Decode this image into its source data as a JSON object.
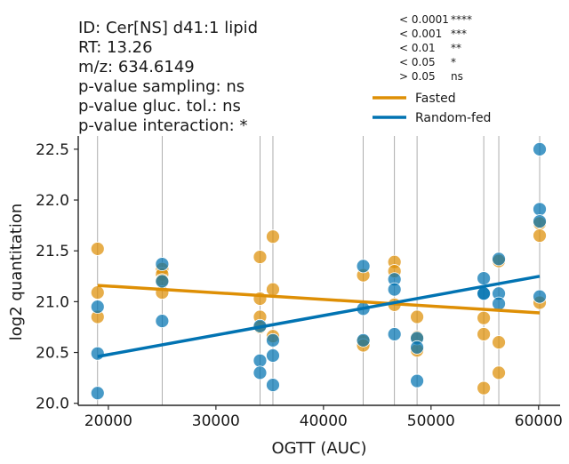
{
  "info": {
    "id": "ID: Cer[NS] d41:1 lipid",
    "rt": "RT: 13.26",
    "mz": "m/z: 634.6149",
    "p_sampling": "p-value sampling:   ns",
    "p_gluc": "p-value gluc. tol.:    ns",
    "p_interaction": "p-value interaction: *"
  },
  "pvalue_key": [
    {
      "threshold": "< 0.0001",
      "mark": "****"
    },
    {
      "threshold": "< 0.001",
      "mark": "***"
    },
    {
      "threshold": "< 0.01",
      "mark": "**"
    },
    {
      "threshold": "< 0.05",
      "mark": "*"
    },
    {
      "threshold": "> 0.05",
      "mark": "ns"
    }
  ],
  "colors": {
    "fasted": "#de8f05",
    "random_fed": "#0173b2",
    "vline": "#999999"
  },
  "chart_data": {
    "type": "scatter",
    "xlabel": "OGTT (AUC)",
    "ylabel": "log2 quantitation",
    "xlim": [
      17200,
      62000
    ],
    "ylim": [
      19.98,
      22.63
    ],
    "xticks": [
      20000,
      30000,
      40000,
      50000,
      60000
    ],
    "xtick_labels": [
      "20000",
      "30000",
      "40000",
      "50000",
      "60000"
    ],
    "yticks": [
      20.0,
      20.5,
      21.0,
      21.5,
      22.0,
      22.5
    ],
    "ytick_labels": [
      "20.0",
      "20.5",
      "21.0",
      "21.5",
      "22.0",
      "22.5"
    ],
    "vertical_lines": [
      19000,
      25000,
      34100,
      35300,
      43700,
      46600,
      48700,
      54900,
      56300,
      60100
    ],
    "legend": {
      "position": "top-right",
      "entries": [
        "Fasted",
        "Random-fed"
      ]
    },
    "series": [
      {
        "name": "Fasted",
        "points": [
          [
            19000,
            21.52
          ],
          [
            19000,
            21.09
          ],
          [
            19000,
            20.85
          ],
          [
            25000,
            21.32
          ],
          [
            25000,
            21.27
          ],
          [
            25000,
            21.21
          ],
          [
            25000,
            21.09
          ],
          [
            34100,
            21.44
          ],
          [
            34100,
            21.03
          ],
          [
            34100,
            20.85
          ],
          [
            34100,
            20.75
          ],
          [
            35300,
            21.64
          ],
          [
            35300,
            21.12
          ],
          [
            35300,
            20.66
          ],
          [
            43700,
            21.26
          ],
          [
            43700,
            20.61
          ],
          [
            43700,
            20.57
          ],
          [
            46600,
            21.39
          ],
          [
            46600,
            21.3
          ],
          [
            46600,
            20.97
          ],
          [
            48700,
            20.85
          ],
          [
            48700,
            20.65
          ],
          [
            48700,
            20.52
          ],
          [
            54900,
            20.84
          ],
          [
            54900,
            20.68
          ],
          [
            54900,
            20.15
          ],
          [
            56300,
            21.4
          ],
          [
            56300,
            20.6
          ],
          [
            56300,
            20.3
          ],
          [
            60100,
            21.77
          ],
          [
            60100,
            21.65
          ],
          [
            60100,
            20.99
          ]
        ],
        "trend": [
          [
            19000,
            21.16
          ],
          [
            60100,
            20.89
          ]
        ]
      },
      {
        "name": "Random-fed",
        "points": [
          [
            19000,
            20.95
          ],
          [
            19000,
            20.49
          ],
          [
            19000,
            20.1
          ],
          [
            25000,
            21.37
          ],
          [
            25000,
            21.2
          ],
          [
            25000,
            20.81
          ],
          [
            34100,
            20.76
          ],
          [
            34100,
            20.42
          ],
          [
            34100,
            20.3
          ],
          [
            35300,
            20.62
          ],
          [
            35300,
            20.47
          ],
          [
            35300,
            20.18
          ],
          [
            43700,
            21.35
          ],
          [
            43700,
            20.93
          ],
          [
            43700,
            20.62
          ],
          [
            46600,
            21.22
          ],
          [
            46600,
            21.12
          ],
          [
            46600,
            20.68
          ],
          [
            48700,
            20.64
          ],
          [
            48700,
            20.55
          ],
          [
            48700,
            20.22
          ],
          [
            54900,
            21.23
          ],
          [
            54900,
            21.08
          ],
          [
            54900,
            21.08
          ],
          [
            56300,
            21.42
          ],
          [
            56300,
            21.08
          ],
          [
            56300,
            20.98
          ],
          [
            60100,
            22.5
          ],
          [
            60100,
            21.91
          ],
          [
            60100,
            21.79
          ],
          [
            60100,
            21.05
          ]
        ],
        "trend": [
          [
            19000,
            20.46
          ],
          [
            60100,
            21.25
          ]
        ]
      }
    ]
  }
}
